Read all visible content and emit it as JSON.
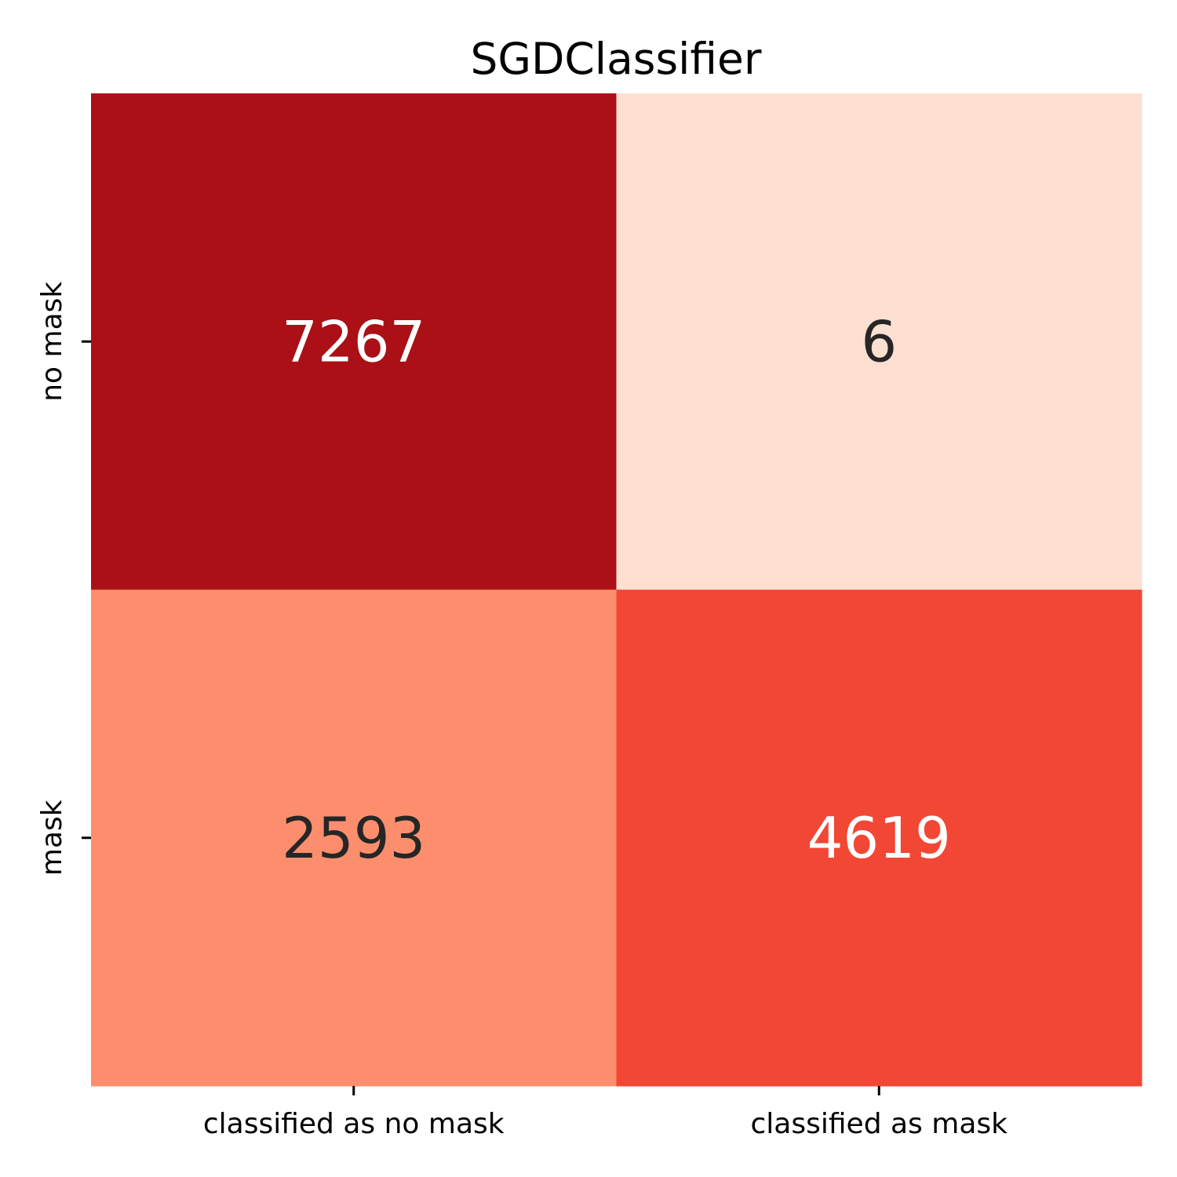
{
  "chart_data": {
    "type": "heatmap",
    "title": "SGDClassifier",
    "x_categories": [
      "classified as no mask",
      "classified as mask"
    ],
    "y_categories": [
      "no mask",
      "mask"
    ],
    "values": [
      [
        7267,
        6
      ],
      [
        2593,
        4619
      ]
    ],
    "colormap": "Reds",
    "colorbar": false,
    "grid": false
  }
}
